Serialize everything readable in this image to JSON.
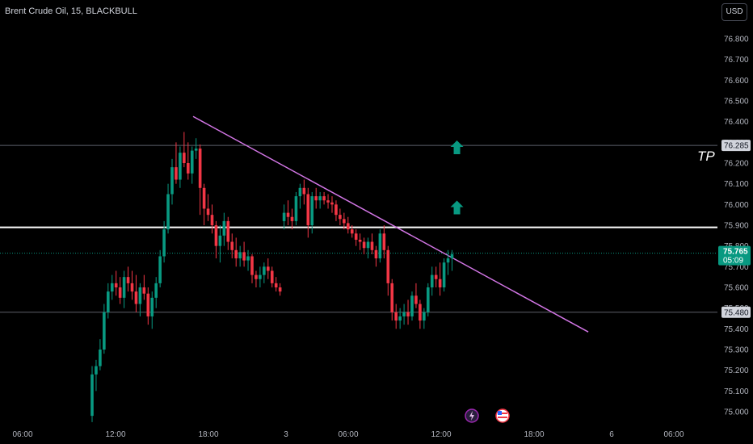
{
  "header": {
    "title": "Brent Crude Oil, 15, BLACKBULL",
    "currency_button": "USD"
  },
  "annotations": {
    "tp_label": "TP"
  },
  "colors": {
    "up": "#089981",
    "down": "#f23645",
    "trendline": "#d376e6",
    "level": "#ffffff",
    "last_price_bg": "#089981",
    "grid_level": "#5d606b"
  },
  "chart_data": {
    "type": "candlestick",
    "title": "Brent Crude Oil, 15, BLACKBULL",
    "y_ticks": [
      "76.800",
      "76.700",
      "76.600",
      "76.500",
      "76.400",
      "76.300",
      "76.200",
      "76.100",
      "76.000",
      "75.900",
      "75.800",
      "75.700",
      "75.600",
      "75.500",
      "75.400",
      "75.300",
      "75.200",
      "75.100",
      "75.000"
    ],
    "x_ticks": [
      "06:00",
      "12:00",
      "18:00",
      "3",
      "06:00",
      "12:00",
      "18:00",
      "6",
      "06:00"
    ],
    "ylim": [
      74.96,
      76.85
    ],
    "price_levels": [
      {
        "value": 76.285,
        "label": "76.285",
        "style": "thin"
      },
      {
        "value": 75.89,
        "label": "",
        "style": "thick"
      },
      {
        "value": 75.48,
        "label": "75.480",
        "style": "thin"
      }
    ],
    "last_price": {
      "value": 75.765,
      "label": "75.765",
      "countdown": "05:09"
    },
    "trendline": {
      "from": {
        "bar": 0,
        "price": 76.425
      },
      "to": {
        "bar": 98,
        "price": 75.385
      }
    },
    "up_arrows": [
      {
        "bar": 89,
        "price": 76.27
      },
      {
        "bar": 89,
        "price": 75.98
      }
    ],
    "icons": [
      "lightning-icon",
      "flag-us-icon"
    ],
    "candles": [
      [
        74.98,
        75.22,
        74.95,
        75.18
      ],
      [
        75.18,
        75.25,
        75.1,
        75.22
      ],
      [
        75.22,
        75.35,
        75.2,
        75.3
      ],
      [
        75.3,
        75.52,
        75.28,
        75.48
      ],
      [
        75.48,
        75.62,
        75.45,
        75.58
      ],
      [
        75.58,
        75.66,
        75.54,
        75.62
      ],
      [
        75.62,
        75.68,
        75.56,
        75.6
      ],
      [
        75.6,
        75.65,
        75.52,
        75.55
      ],
      [
        75.55,
        75.68,
        75.5,
        75.65
      ],
      [
        75.65,
        75.7,
        75.58,
        75.62
      ],
      [
        75.62,
        75.68,
        75.54,
        75.58
      ],
      [
        75.58,
        75.66,
        75.48,
        75.52
      ],
      [
        75.52,
        75.62,
        75.46,
        75.6
      ],
      [
        75.6,
        75.66,
        75.54,
        75.57
      ],
      [
        75.57,
        75.6,
        75.42,
        75.46
      ],
      [
        75.46,
        75.58,
        75.4,
        75.55
      ],
      [
        75.55,
        75.65,
        75.5,
        75.62
      ],
      [
        75.62,
        75.78,
        75.6,
        75.75
      ],
      [
        75.75,
        75.92,
        75.72,
        75.88
      ],
      [
        75.88,
        76.1,
        75.86,
        76.05
      ],
      [
        76.05,
        76.22,
        76.0,
        76.18
      ],
      [
        76.18,
        76.3,
        76.1,
        76.12
      ],
      [
        76.12,
        76.28,
        76.08,
        76.25
      ],
      [
        76.25,
        76.35,
        76.18,
        76.2
      ],
      [
        76.2,
        76.3,
        76.12,
        76.15
      ],
      [
        76.15,
        76.28,
        76.1,
        76.26
      ],
      [
        76.26,
        76.32,
        76.22,
        76.27
      ],
      [
        76.27,
        76.29,
        75.95,
        76.08
      ],
      [
        76.08,
        76.1,
        75.9,
        75.98
      ],
      [
        75.98,
        76.05,
        75.92,
        75.95
      ],
      [
        75.95,
        76.0,
        75.86,
        75.9
      ],
      [
        75.9,
        75.92,
        75.74,
        75.8
      ],
      [
        75.8,
        75.9,
        75.72,
        75.85
      ],
      [
        75.85,
        75.96,
        75.8,
        75.92
      ],
      [
        75.92,
        75.94,
        75.78,
        75.82
      ],
      [
        75.82,
        75.86,
        75.74,
        75.78
      ],
      [
        75.78,
        75.84,
        75.7,
        75.74
      ],
      [
        75.74,
        75.8,
        75.7,
        75.77
      ],
      [
        75.77,
        75.82,
        75.7,
        75.73
      ],
      [
        75.73,
        75.78,
        75.68,
        75.75
      ],
      [
        75.75,
        75.76,
        75.62,
        75.66
      ],
      [
        75.66,
        75.68,
        75.6,
        75.64
      ],
      [
        75.64,
        75.7,
        75.6,
        75.66
      ],
      [
        75.66,
        75.72,
        75.62,
        75.7
      ],
      [
        75.7,
        75.74,
        75.64,
        75.68
      ],
      [
        75.68,
        75.7,
        75.6,
        75.62
      ],
      [
        75.62,
        75.65,
        75.58,
        75.6
      ],
      [
        75.6,
        75.62,
        75.56,
        75.58
      ],
      [
        75.92,
        76.0,
        75.88,
        75.96
      ],
      [
        75.96,
        76.02,
        75.9,
        75.94
      ],
      [
        75.94,
        75.98,
        75.88,
        75.92
      ],
      [
        75.92,
        76.06,
        75.9,
        76.04
      ],
      [
        76.04,
        76.1,
        75.98,
        76.08
      ],
      [
        76.08,
        76.12,
        76.0,
        76.05
      ],
      [
        76.05,
        76.08,
        75.84,
        75.9
      ],
      [
        75.9,
        76.06,
        75.86,
        76.04
      ],
      [
        76.04,
        76.08,
        75.98,
        76.02
      ],
      [
        76.02,
        76.06,
        75.98,
        76.04
      ],
      [
        76.04,
        76.06,
        76.0,
        76.02
      ],
      [
        76.02,
        76.05,
        75.98,
        76.01
      ],
      [
        76.01,
        76.04,
        75.96,
        76.0
      ],
      [
        76.0,
        76.02,
        75.92,
        75.95
      ],
      [
        75.95,
        75.98,
        75.9,
        75.93
      ],
      [
        75.93,
        75.96,
        75.88,
        75.91
      ],
      [
        75.91,
        75.94,
        75.86,
        75.88
      ],
      [
        75.88,
        75.9,
        75.84,
        75.86
      ],
      [
        75.86,
        75.88,
        75.8,
        75.83
      ],
      [
        75.83,
        75.86,
        75.78,
        75.82
      ],
      [
        75.82,
        75.84,
        75.76,
        75.79
      ],
      [
        75.79,
        75.84,
        75.74,
        75.82
      ],
      [
        75.82,
        75.86,
        75.76,
        75.78
      ],
      [
        75.78,
        75.8,
        75.7,
        75.74
      ],
      [
        75.74,
        75.88,
        75.72,
        75.86
      ],
      [
        75.86,
        75.9,
        75.74,
        75.78
      ],
      [
        75.78,
        75.8,
        75.56,
        75.62
      ],
      [
        75.62,
        75.64,
        75.44,
        75.48
      ],
      [
        75.48,
        75.52,
        75.4,
        75.44
      ],
      [
        75.44,
        75.5,
        75.4,
        75.46
      ],
      [
        75.46,
        75.52,
        75.42,
        75.48
      ],
      [
        75.48,
        75.54,
        75.42,
        75.46
      ],
      [
        75.46,
        75.58,
        75.44,
        75.56
      ],
      [
        75.56,
        75.62,
        75.5,
        75.52
      ],
      [
        75.52,
        75.54,
        75.4,
        75.44
      ],
      [
        75.44,
        75.5,
        75.4,
        75.48
      ],
      [
        75.48,
        75.62,
        75.46,
        75.6
      ],
      [
        75.6,
        75.7,
        75.56,
        75.66
      ],
      [
        75.66,
        75.7,
        75.6,
        75.64
      ],
      [
        75.64,
        75.72,
        75.56,
        75.6
      ],
      [
        75.6,
        75.74,
        75.58,
        75.72
      ],
      [
        75.72,
        75.78,
        75.66,
        75.74
      ],
      [
        75.74,
        75.78,
        75.68,
        75.76
      ]
    ]
  }
}
